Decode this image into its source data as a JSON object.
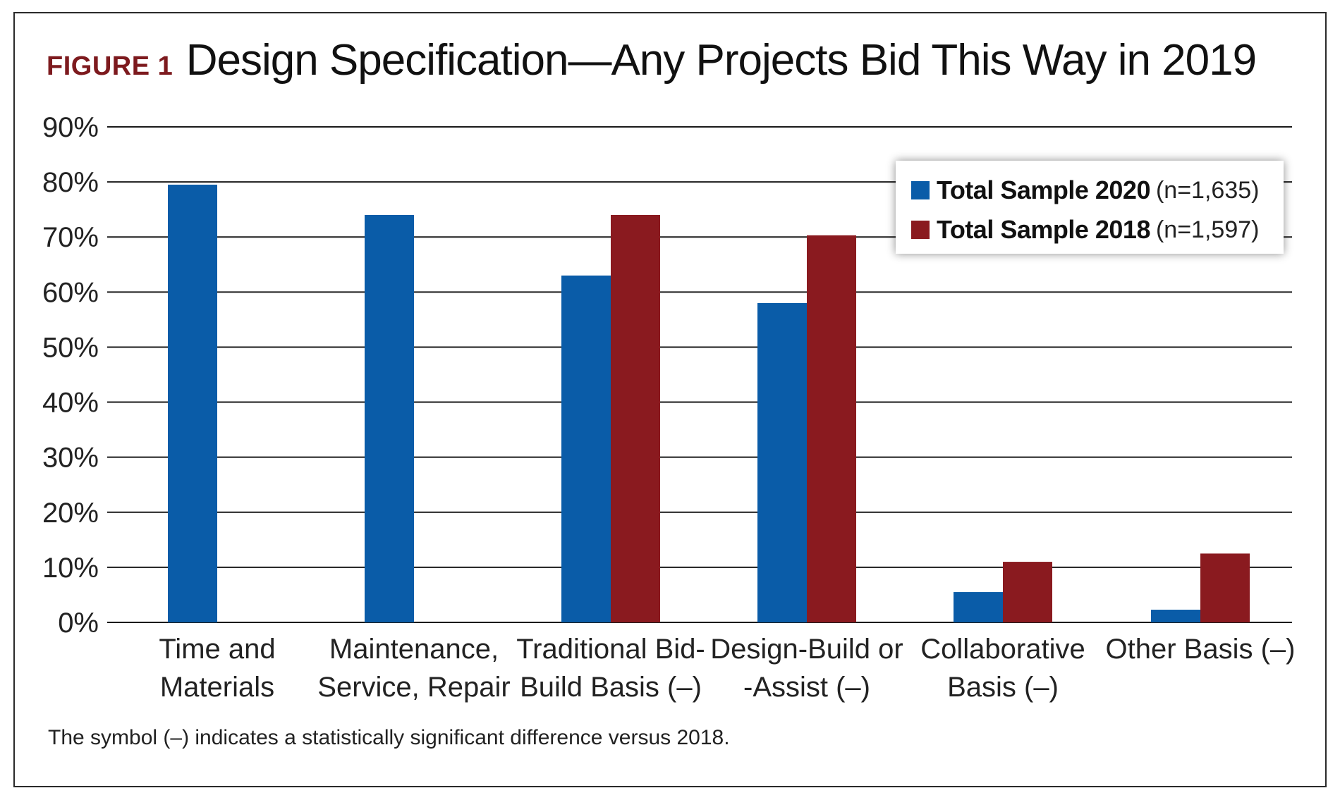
{
  "figure_label": "FIGURE 1",
  "footnote": "The symbol (–) indicates a statistically significant difference versus 2018.",
  "chart_data": {
    "type": "bar",
    "title": "Design Specification—Any Projects Bid This Way in 2019",
    "categories": [
      [
        "Time and",
        "Materials"
      ],
      [
        "Maintenance,",
        "Service, Repair"
      ],
      [
        "Traditional Bid-",
        "Build Basis (–)"
      ],
      [
        "Design-Build or",
        "-Assist (–)"
      ],
      [
        "Collaborative",
        "Basis (–)"
      ],
      [
        "Other Basis (–)"
      ]
    ],
    "series": [
      {
        "name": "Total Sample 2020",
        "n_label": "(n=1,635)",
        "color": "#0a5ca8",
        "values": [
          79.5,
          74,
          63,
          58,
          5.5,
          2.3
        ]
      },
      {
        "name": "Total Sample 2018",
        "n_label": "(n=1,597)",
        "color": "#8a1a1f",
        "values": [
          null,
          null,
          74,
          70.3,
          11,
          12.5
        ]
      }
    ],
    "yticks": [
      "0%",
      "10%",
      "20%",
      "30%",
      "40%",
      "50%",
      "60%",
      "70%",
      "80%",
      "90%"
    ],
    "ylim": [
      0,
      90
    ],
    "grid": true,
    "legend_position": "top-right"
  }
}
